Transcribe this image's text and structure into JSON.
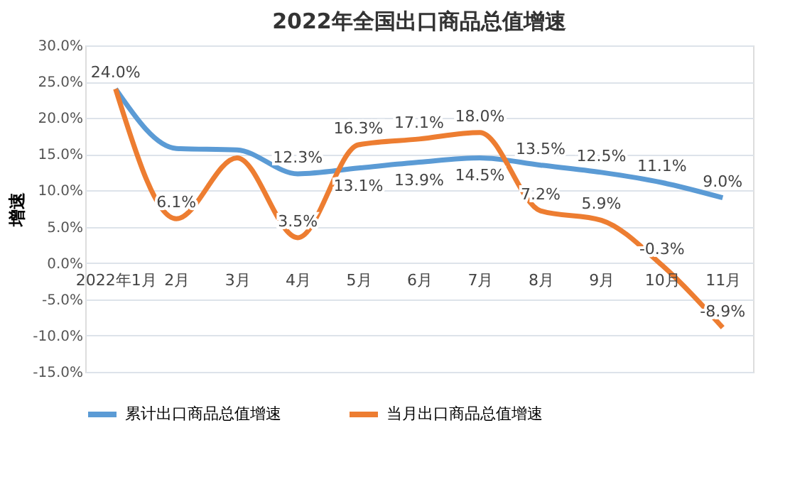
{
  "chart_data": {
    "type": "line",
    "title": "2022年全国出口商品总值增速",
    "ylabel": "增速",
    "categories": [
      "2022年1月",
      "2月",
      "3月",
      "4月",
      "5月",
      "6月",
      "7月",
      "8月",
      "9月",
      "10月",
      "11月"
    ],
    "series": [
      {
        "name": "累计出口商品总值增速",
        "color": "#5b9bd5",
        "values": [
          24.0,
          15.8,
          15.6,
          12.3,
          13.1,
          13.9,
          14.5,
          13.5,
          12.5,
          11.1,
          9.0
        ],
        "value_labels": [
          "24.0%",
          null,
          null,
          "12.3%",
          "13.1%",
          "13.9%",
          "14.5%",
          "13.5%",
          "12.5%",
          "11.1%",
          "9.0%"
        ]
      },
      {
        "name": "当月出口商品总值增速",
        "color": "#ed7d31",
        "values": [
          24.0,
          6.1,
          14.5,
          3.5,
          16.3,
          17.1,
          18.0,
          7.2,
          5.9,
          -0.3,
          -8.9
        ],
        "value_labels": [
          null,
          "6.1%",
          null,
          "3.5%",
          "16.3%",
          "17.1%",
          "18.0%",
          "7.2%",
          "5.9%",
          "-0.3%",
          "-8.9%"
        ]
      }
    ],
    "ylim": [
      -15,
      30
    ],
    "yticks": [
      {
        "value": -15,
        "label": "-15.0%"
      },
      {
        "value": -10,
        "label": "-10.0%"
      },
      {
        "value": -5,
        "label": "-5.0%"
      },
      {
        "value": 0,
        "label": "0.0%"
      },
      {
        "value": 5,
        "label": "5.0%"
      },
      {
        "value": 10,
        "label": "10.0%"
      },
      {
        "value": 15,
        "label": "15.0%"
      },
      {
        "value": 20,
        "label": "20.0%"
      },
      {
        "value": 25,
        "label": "25.0%"
      },
      {
        "value": 30,
        "label": "30.0%"
      }
    ],
    "grid": "y",
    "legend": "bottom",
    "marker": "none",
    "line_style": "solid"
  }
}
